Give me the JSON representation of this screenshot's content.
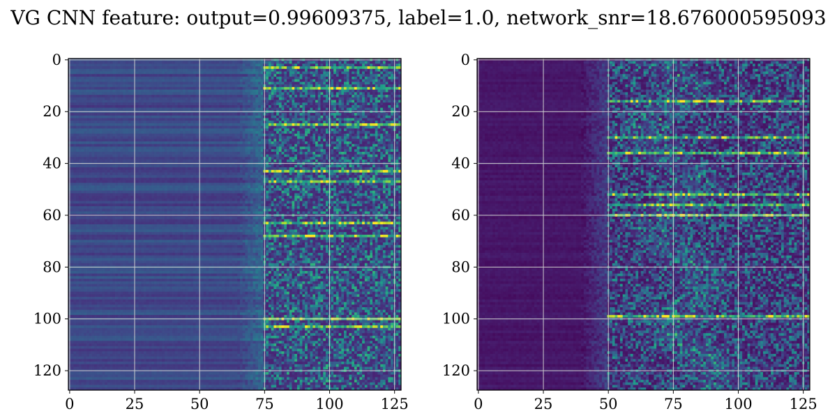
{
  "chart_data": [
    {
      "type": "heatmap",
      "title": "VG CNN feature: output=0.99609375, label=1.0, network_snr=18.676000595093",
      "x_range": [
        -0.5,
        127.5
      ],
      "y_range": [
        127.5,
        -0.5
      ],
      "x_ticks": [
        0,
        25,
        50,
        75,
        100,
        125
      ],
      "y_ticks": [
        0,
        20,
        40,
        60,
        80,
        100,
        120
      ],
      "x_tick_labels": [
        "0",
        "25",
        "50",
        "75",
        "100",
        "125"
      ],
      "y_tick_labels": [
        "0",
        "20",
        "40",
        "60",
        "80",
        "100",
        "120"
      ],
      "grid": true,
      "colormap": "viridis",
      "rows": 128,
      "cols": 128,
      "panels": [
        {
          "name": "left",
          "description_values": {
            "base_level_left_cols": 0.22,
            "transition_col": 75,
            "bright_rows": [
              3,
              11,
              25,
              43,
              47,
              63,
              68,
              100,
              103
            ]
          }
        },
        {
          "name": "right",
          "description_values": {
            "base_level_left_cols": 0.06,
            "transition_col": 50,
            "bright_rows": [
              16,
              30,
              36,
              52,
              56,
              60,
              99
            ]
          }
        }
      ]
    }
  ]
}
